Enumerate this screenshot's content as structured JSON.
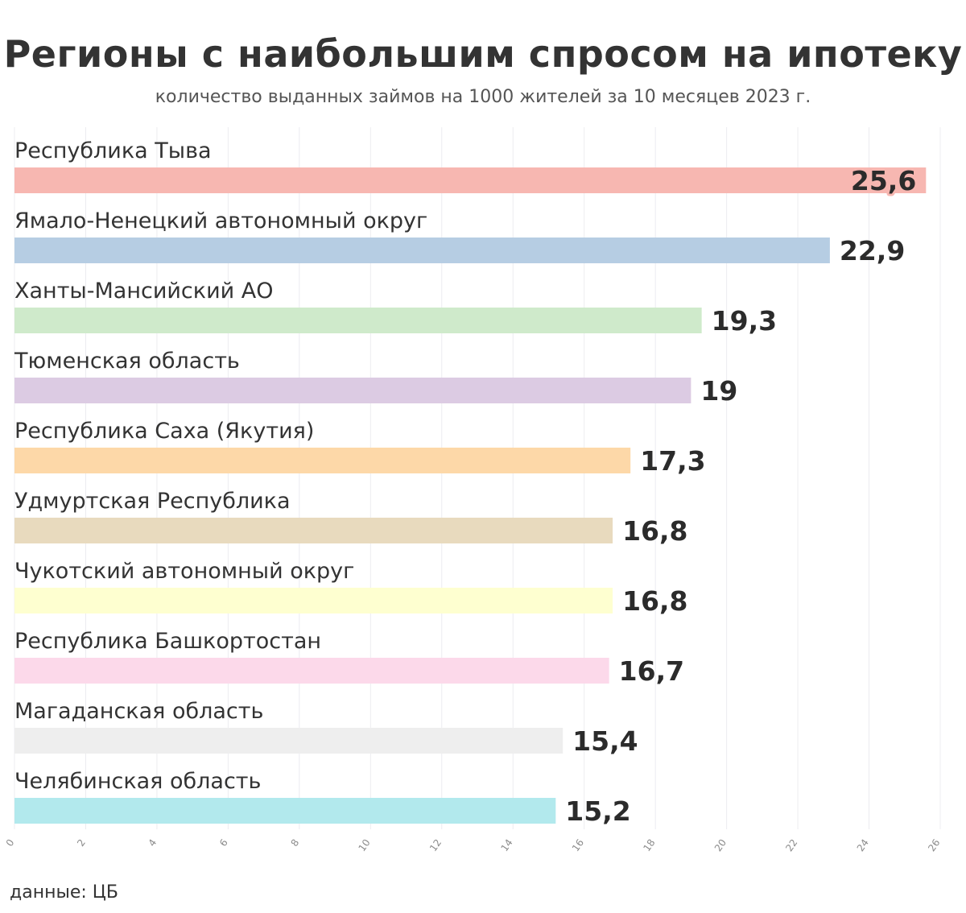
{
  "header": {
    "title": "Регионы с наибольшим спросом на ипотеку",
    "subtitle": "количество выданных займов на 1000 жителей за 10 месяцев 2023 г."
  },
  "footer": {
    "source": "данные: ЦБ"
  },
  "chart_data": {
    "type": "bar",
    "orientation": "horizontal",
    "title": "Регионы с наибольшим спросом на ипотеку",
    "subtitle": "количество выданных займов на 1000 жителей за 10 месяцев 2023 г.",
    "categories": [
      "Республика Тыва",
      "Ямало-Ненецкий автономный округ",
      "Ханты-Мансийский АО",
      "Тюменская область",
      "Республика Саха (Якутия)",
      "Удмуртская Республика",
      "Чукотский автономный округ",
      "Республика Башкортостан",
      "Магаданская область",
      "Челябинская область"
    ],
    "values": [
      25.6,
      22.9,
      19.3,
      19,
      17.3,
      16.8,
      16.8,
      16.7,
      15.4,
      15.2
    ],
    "value_labels": [
      "25,6",
      "22,9",
      "19,3",
      "19",
      "17,3",
      "16,8",
      "16,8",
      "16,7",
      "15,4",
      "15,2"
    ],
    "colors": [
      "#f7b7b1",
      "#b6cde3",
      "#cfeacb",
      "#dccbe3",
      "#fdd8a8",
      "#e8dabe",
      "#feffd0",
      "#fcd9ea",
      "#eeeeee",
      "#b2e9ed"
    ],
    "xlim": [
      0,
      26
    ],
    "xticks": [
      0,
      2,
      4,
      6,
      8,
      10,
      12,
      14,
      16,
      18,
      20,
      22,
      24,
      26
    ],
    "grid": true,
    "legend": "none"
  }
}
